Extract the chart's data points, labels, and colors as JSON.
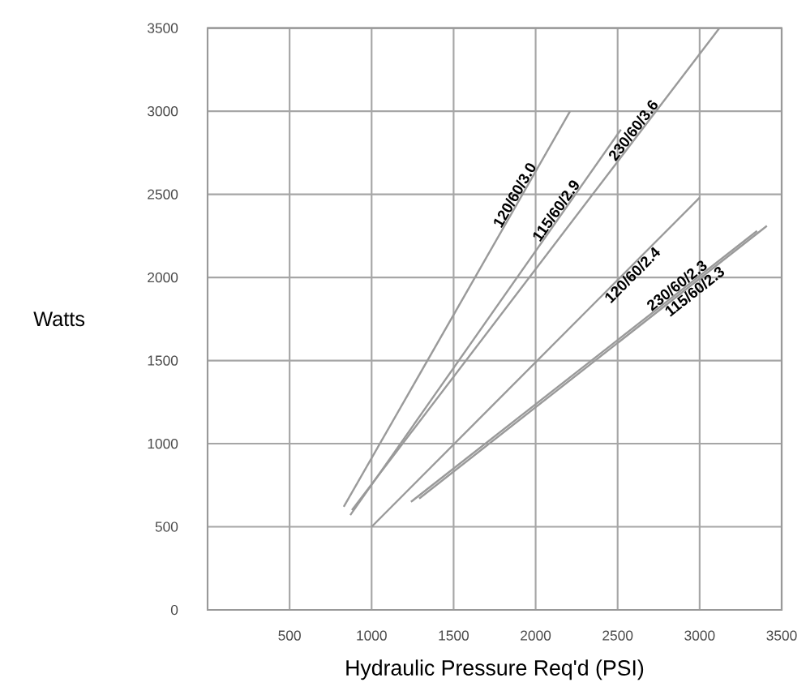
{
  "chart_data": {
    "type": "line",
    "xlabel": "Hydraulic Pressure Req'd (PSI)",
    "ylabel": "Watts",
    "xlim": [
      0,
      3500
    ],
    "ylim": [
      0,
      3500
    ],
    "xticks": [
      500,
      1000,
      1500,
      2000,
      2500,
      3000,
      3500
    ],
    "yticks": [
      0,
      500,
      1000,
      1500,
      2000,
      2500,
      3000,
      3500
    ],
    "grid": true,
    "marker": "none",
    "line_style": "solid",
    "series": [
      {
        "name": "120/60/3.0",
        "color": "#9a9a9a",
        "x": [
          830,
          2210
        ],
        "values": [
          620,
          3000
        ]
      },
      {
        "name": "115/60/2.9",
        "color": "#9a9a9a",
        "x": [
          870,
          2520
        ],
        "values": [
          570,
          2890
        ]
      },
      {
        "name": "230/60/3.6",
        "color": "#9a9a9a",
        "x": [
          880,
          3120
        ],
        "values": [
          600,
          3500
        ]
      },
      {
        "name": "120/60/2.4",
        "color": "#9a9a9a",
        "x": [
          1000,
          3000
        ],
        "values": [
          500,
          2480
        ]
      },
      {
        "name": "115/60/2.3",
        "color": "#9a9a9a",
        "x": [
          1290,
          3410
        ],
        "values": [
          670,
          2310
        ]
      },
      {
        "name": "230/60/2.3",
        "color": "#9a9a9a",
        "x": [
          1240,
          3350
        ],
        "values": [
          650,
          2280
        ]
      }
    ]
  }
}
